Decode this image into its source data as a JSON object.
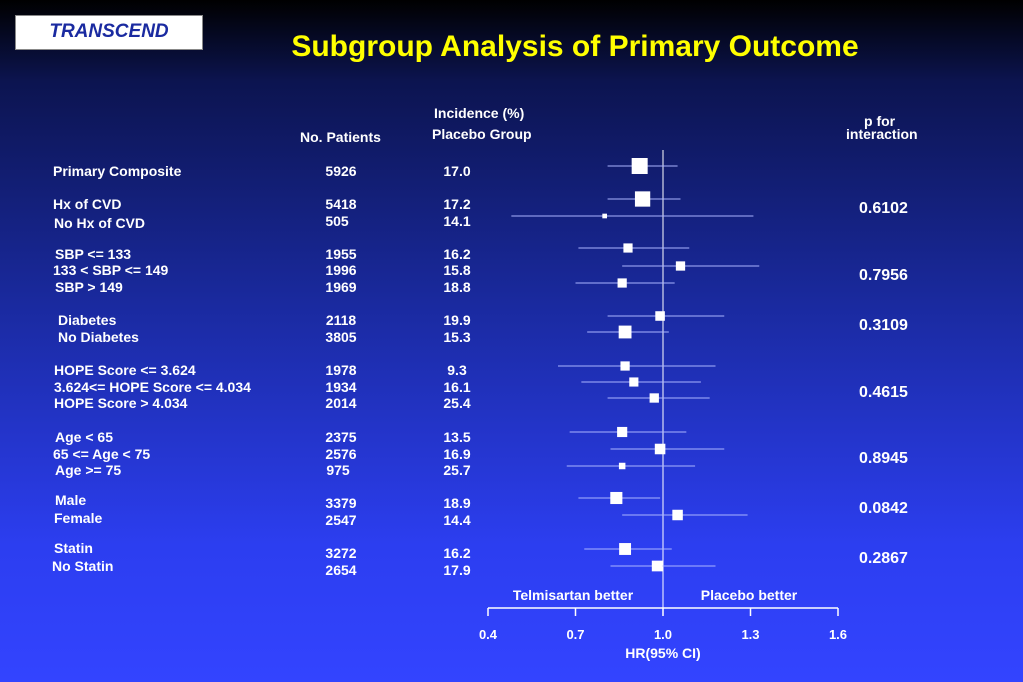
{
  "logo": "TRANSCEND",
  "title": "Subgroup Analysis of Primary Outcome",
  "headers": {
    "incidence_line1": "Incidence (%)",
    "incidence_line2": "Placebo Group",
    "no_patients": "No. Patients",
    "p_line1": "p for",
    "p_line2": "interaction"
  },
  "rows": [
    {
      "label": "Primary Composite",
      "n": "5926",
      "inc": "17.0"
    },
    {
      "label": "Hx of CVD",
      "n": "5418",
      "inc": "17.2"
    },
    {
      "label": "No Hx of CVD",
      "n": "505",
      "inc": "14.1"
    },
    {
      "label": "SBP <= 133",
      "n": "1955",
      "inc": "16.2"
    },
    {
      "label": "133 < SBP <= 149",
      "n": "1996",
      "inc": "15.8"
    },
    {
      "label": "SBP > 149",
      "n": "1969",
      "inc": "18.8"
    },
    {
      "label": "Diabetes",
      "n": "2118",
      "inc": "19.9"
    },
    {
      "label": "No Diabetes",
      "n": "3805",
      "inc": "15.3"
    },
    {
      "label": "HOPE Score <= 3.624",
      "n": "1978",
      "inc": "9.3"
    },
    {
      "label": "3.624<= HOPE Score <= 4.034",
      "n": "1934",
      "inc": "16.1"
    },
    {
      "label": "HOPE Score > 4.034",
      "n": "2014",
      "inc": "25.4"
    },
    {
      "label": "Age < 65",
      "n": "2375",
      "inc": "13.5"
    },
    {
      "label": "65 <= Age < 75",
      "n": "2576",
      "inc": "16.9"
    },
    {
      "label": "Age >= 75",
      "n": "975",
      "inc": "25.7"
    },
    {
      "label": "Male",
      "n": "3379",
      "inc": "18.9"
    },
    {
      "label": "Female",
      "n": "2547",
      "inc": "14.4"
    },
    {
      "label": "Statin",
      "n": "3272",
      "inc": "16.2"
    },
    {
      "label": "No Statin",
      "n": "2654",
      "inc": "17.9"
    }
  ],
  "p_values": [
    "0.6102",
    "0.7956",
    "0.3109",
    "0.4615",
    "0.8945",
    "0.0842",
    "0.2867"
  ],
  "chart_data": {
    "type": "forest",
    "xlabel": "HR(95% CI)",
    "xlim": [
      0.4,
      1.6
    ],
    "xticks": [
      "0.4",
      "0.7",
      "1.0",
      "1.3",
      "1.6"
    ],
    "reference_line": 1.0,
    "left_annotation": "Telmisartan better",
    "right_annotation": "Placebo better",
    "colors": {
      "marker": "#ffffff",
      "ci_line": "#aab4ff",
      "axis": "#ffffff"
    },
    "estimates": [
      {
        "label": "Primary Composite",
        "hr": 0.92,
        "lo": 0.81,
        "hi": 1.05
      },
      {
        "label": "Hx of CVD",
        "hr": 0.93,
        "lo": 0.81,
        "hi": 1.06
      },
      {
        "label": "No Hx of CVD",
        "hr": 0.8,
        "lo": 0.48,
        "hi": 1.31
      },
      {
        "label": "SBP <= 133",
        "hr": 0.88,
        "lo": 0.71,
        "hi": 1.09
      },
      {
        "label": "133 < SBP <= 149",
        "hr": 1.06,
        "lo": 0.86,
        "hi": 1.33
      },
      {
        "label": "SBP > 149",
        "hr": 0.86,
        "lo": 0.7,
        "hi": 1.04
      },
      {
        "label": "Diabetes",
        "hr": 0.99,
        "lo": 0.81,
        "hi": 1.21
      },
      {
        "label": "No Diabetes",
        "hr": 0.87,
        "lo": 0.74,
        "hi": 1.02
      },
      {
        "label": "HOPE Score <= 3.624",
        "hr": 0.87,
        "lo": 0.64,
        "hi": 1.18
      },
      {
        "label": "3.624<= HOPE Score <= 4.034",
        "hr": 0.9,
        "lo": 0.72,
        "hi": 1.13
      },
      {
        "label": "HOPE Score > 4.034",
        "hr": 0.97,
        "lo": 0.81,
        "hi": 1.16
      },
      {
        "label": "Age < 65",
        "hr": 0.86,
        "lo": 0.68,
        "hi": 1.08
      },
      {
        "label": "65 <= Age < 75",
        "hr": 0.99,
        "lo": 0.82,
        "hi": 1.21
      },
      {
        "label": "Age >= 75",
        "hr": 0.86,
        "lo": 0.67,
        "hi": 1.11
      },
      {
        "label": "Male",
        "hr": 0.84,
        "lo": 0.71,
        "hi": 0.99
      },
      {
        "label": "Female",
        "hr": 1.05,
        "lo": 0.86,
        "hi": 1.29
      },
      {
        "label": "Statin",
        "hr": 0.87,
        "lo": 0.73,
        "hi": 1.03
      },
      {
        "label": "No Statin",
        "hr": 0.98,
        "lo": 0.82,
        "hi": 1.18
      }
    ]
  }
}
